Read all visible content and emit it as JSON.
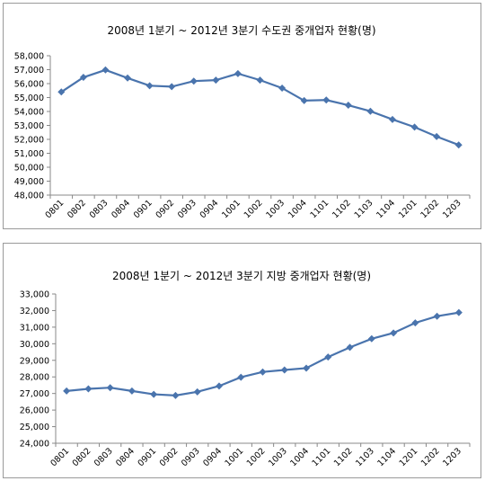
{
  "chart_data": [
    {
      "type": "line",
      "title": "2008년 1분기 ~ 2012년 3분기 수도권 중개업자 현황(명)",
      "categories": [
        "0801",
        "0802",
        "0803",
        "0804",
        "0901",
        "0902",
        "0903",
        "0904",
        "1001",
        "1002",
        "1003",
        "1004",
        "1101",
        "1102",
        "1103",
        "1104",
        "1201",
        "1202",
        "1203"
      ],
      "series": [
        {
          "values": [
            55400,
            56450,
            56980,
            56400,
            55850,
            55780,
            56180,
            56250,
            56720,
            56250,
            55680,
            54780,
            54820,
            54450,
            54020,
            53430,
            52880,
            52200,
            51600
          ]
        }
      ],
      "ylim": [
        48000,
        58000
      ],
      "ystep": 1000,
      "yticklabels": [
        "48,000",
        "49,000",
        "50,000",
        "51,000",
        "52,000",
        "53,000",
        "54,000",
        "55,000",
        "56,000",
        "57,000",
        "58,000"
      ],
      "line_color": "#4a74ad",
      "grid": false,
      "legend": "none"
    },
    {
      "type": "line",
      "title": "2008년 1분기 ~ 2012년 3분기 지방 중개업자 현황(명)",
      "categories": [
        "0801",
        "0802",
        "0803",
        "0804",
        "0901",
        "0902",
        "0903",
        "0904",
        "1001",
        "1002",
        "1003",
        "1004",
        "1101",
        "1102",
        "1103",
        "1104",
        "1201",
        "1202",
        "1203"
      ],
      "series": [
        {
          "values": [
            27150,
            27280,
            27350,
            27150,
            26950,
            26880,
            27100,
            27450,
            27980,
            28300,
            28420,
            28530,
            29200,
            29780,
            30300,
            30650,
            31260,
            31660,
            31880
          ]
        }
      ],
      "ylim": [
        24000,
        33000
      ],
      "ystep": 1000,
      "yticklabels": [
        "24,000",
        "25,000",
        "26,000",
        "27,000",
        "28,000",
        "29,000",
        "30,000",
        "31,000",
        "32,000",
        "33,000"
      ],
      "line_color": "#4a74ad",
      "grid": false,
      "legend": "none"
    }
  ]
}
